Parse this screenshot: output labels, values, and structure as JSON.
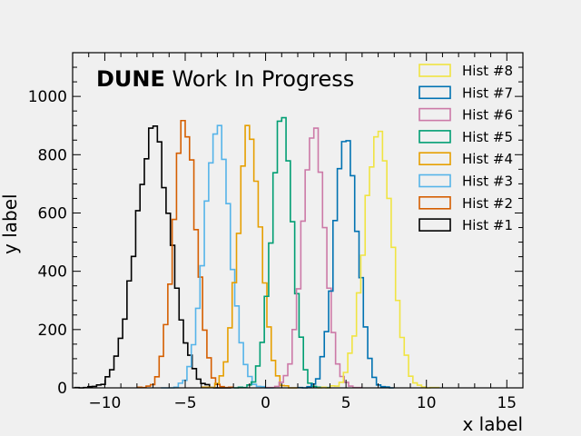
{
  "chart_data": {
    "type": "histogram",
    "title_bold": "DUNE",
    "title_rest": " Work In Progress",
    "xlabel": "x label",
    "ylabel": "y label",
    "xlim": [
      -12,
      16
    ],
    "ylim": [
      0,
      1150
    ],
    "xticks": [
      -10,
      -5,
      0,
      5,
      10,
      15
    ],
    "xtick_labels": [
      "−10",
      "−5",
      "0",
      "5",
      "10",
      "15"
    ],
    "yticks": [
      0,
      200,
      400,
      600,
      800,
      1000
    ],
    "ytick_labels": [
      "0",
      "200",
      "400",
      "600",
      "800",
      "1000"
    ],
    "bin_width": 0.27,
    "legend_placement": "top-right",
    "series": [
      {
        "name": "Hist #1",
        "color": "#000000",
        "center": -7.0,
        "sigma": 1.1,
        "peak": 870
      },
      {
        "name": "Hist #2",
        "color": "#D55E00",
        "center": -5.0,
        "sigma": 0.7,
        "peak": 915
      },
      {
        "name": "Hist #3",
        "color": "#56B4E9",
        "center": -3.0,
        "sigma": 0.8,
        "peak": 880
      },
      {
        "name": "Hist #4",
        "color": "#E69F00",
        "center": -1.0,
        "sigma": 0.7,
        "peak": 870
      },
      {
        "name": "Hist #5",
        "color": "#009E73",
        "center": 1.0,
        "sigma": 0.65,
        "peak": 915
      },
      {
        "name": "Hist #6",
        "color": "#CC79A7",
        "center": 3.0,
        "sigma": 0.7,
        "peak": 890
      },
      {
        "name": "Hist #7",
        "color": "#0072B2",
        "center": 5.0,
        "sigma": 0.7,
        "peak": 900
      },
      {
        "name": "Hist #8",
        "color": "#F0E442",
        "center": 7.0,
        "sigma": 0.85,
        "peak": 870
      }
    ]
  }
}
